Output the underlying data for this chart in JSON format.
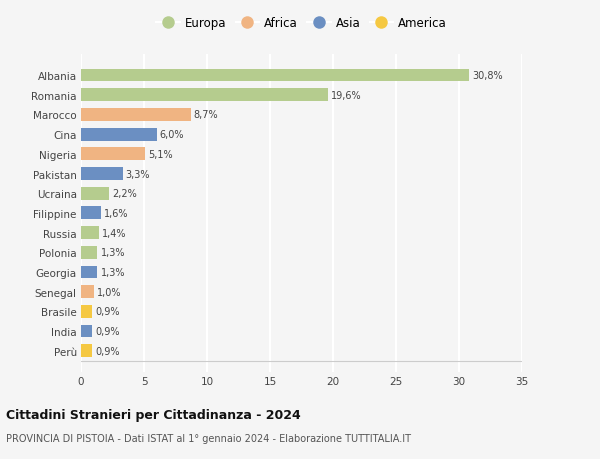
{
  "countries": [
    "Albania",
    "Romania",
    "Marocco",
    "Cina",
    "Nigeria",
    "Pakistan",
    "Ucraina",
    "Filippine",
    "Russia",
    "Polonia",
    "Georgia",
    "Senegal",
    "Brasile",
    "India",
    "Perù"
  ],
  "values": [
    30.8,
    19.6,
    8.7,
    6.0,
    5.1,
    3.3,
    2.2,
    1.6,
    1.4,
    1.3,
    1.3,
    1.0,
    0.9,
    0.9,
    0.9
  ],
  "labels": [
    "30,8%",
    "19,6%",
    "8,7%",
    "6,0%",
    "5,1%",
    "3,3%",
    "2,2%",
    "1,6%",
    "1,4%",
    "1,3%",
    "1,3%",
    "1,0%",
    "0,9%",
    "0,9%",
    "0,9%"
  ],
  "continents": [
    "Europa",
    "Europa",
    "Africa",
    "Asia",
    "Africa",
    "Asia",
    "Europa",
    "Asia",
    "Europa",
    "Europa",
    "Asia",
    "Africa",
    "America",
    "Asia",
    "America"
  ],
  "colors": {
    "Europa": "#b5cc8e",
    "Africa": "#f0b482",
    "Asia": "#6b8fc2",
    "America": "#f5c842"
  },
  "xlim": [
    0,
    35
  ],
  "xticks": [
    0,
    5,
    10,
    15,
    20,
    25,
    30,
    35
  ],
  "title": "Cittadini Stranieri per Cittadinanza - 2024",
  "subtitle": "PROVINCIA DI PISTOIA - Dati ISTAT al 1° gennaio 2024 - Elaborazione TUTTITALIA.IT",
  "background_color": "#f5f5f5",
  "grid_color": "#ffffff",
  "bar_height": 0.65,
  "legend_order": [
    "Europa",
    "Africa",
    "Asia",
    "America"
  ]
}
